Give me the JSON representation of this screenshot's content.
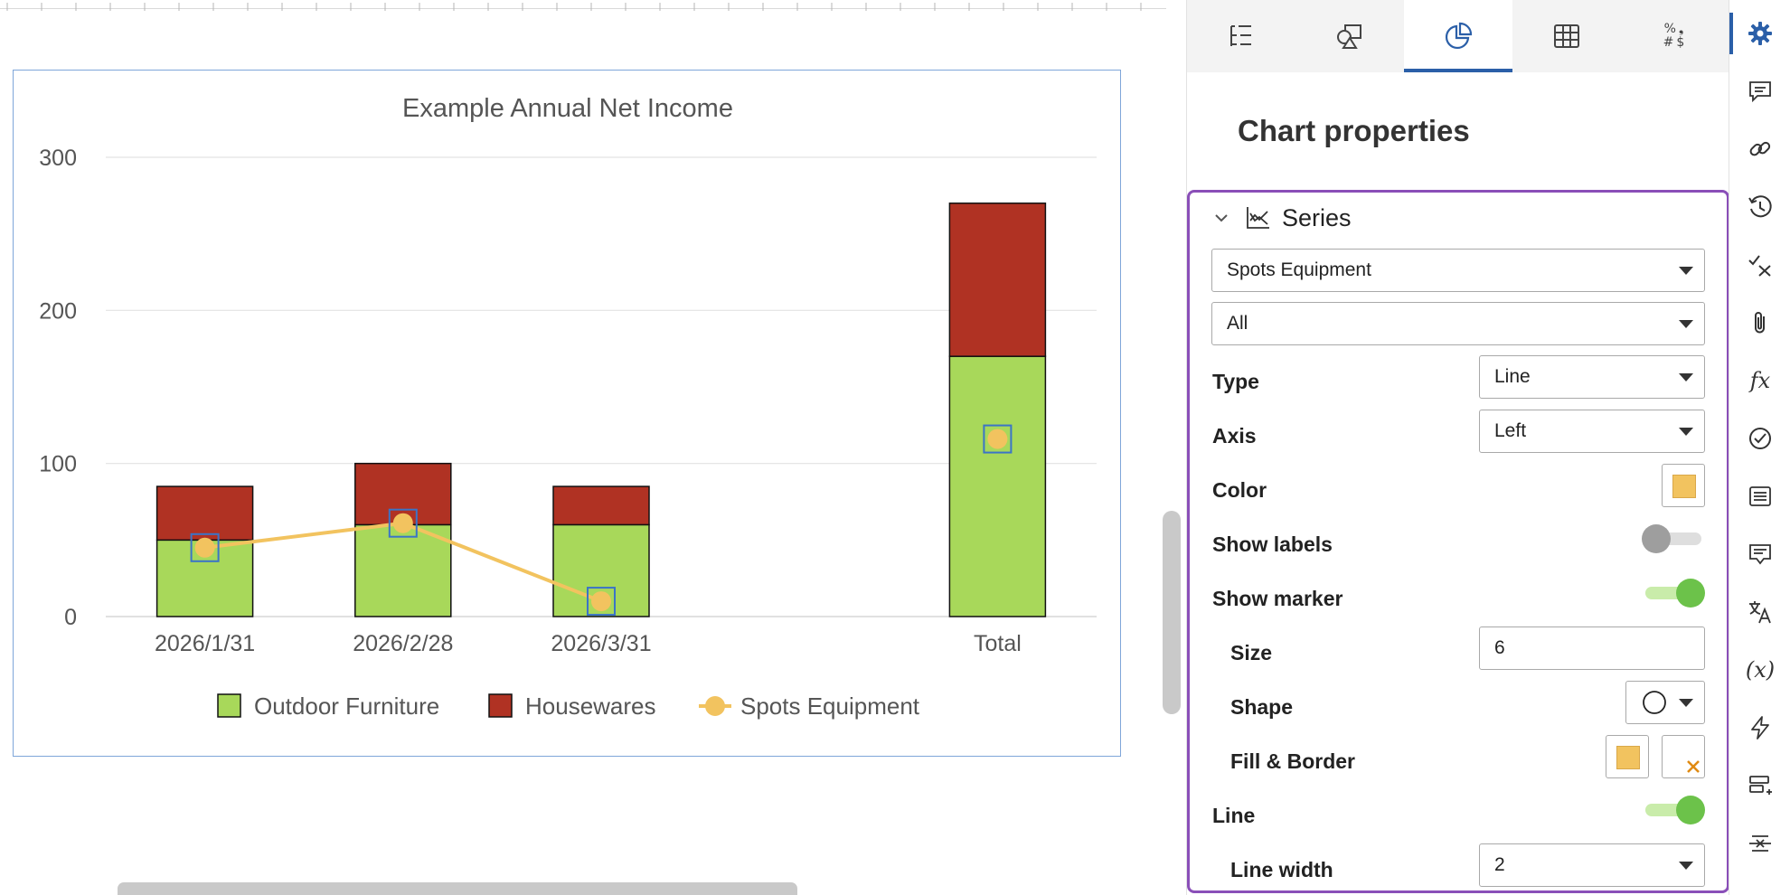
{
  "chart_data": {
    "type": "bar",
    "title": "Example Annual Net Income",
    "categories": [
      "2026/1/31",
      "2026/2/28",
      "2026/3/31",
      "",
      "Total"
    ],
    "ylim": [
      0,
      300
    ],
    "yticks": [
      0,
      100,
      200,
      300
    ],
    "grid": true,
    "legend_position": "bottom",
    "series": [
      {
        "name": "Outdoor Furniture",
        "kind": "bar",
        "color": "#a8d85a",
        "values": [
          50,
          60,
          60,
          null,
          170
        ]
      },
      {
        "name": "Housewares",
        "kind": "bar",
        "color": "#b03223",
        "values": [
          35,
          40,
          25,
          null,
          100
        ]
      },
      {
        "name": "Spots Equipment",
        "kind": "line",
        "color": "#f2c35f",
        "values": [
          45,
          61,
          10,
          null,
          116
        ]
      }
    ]
  },
  "panel": {
    "tabs": [
      {
        "name": "tab-setup",
        "icon": "list-tree-icon"
      },
      {
        "name": "tab-shapes",
        "icon": "shapes-icon"
      },
      {
        "name": "tab-chart",
        "icon": "pie-chart-icon",
        "active": true
      },
      {
        "name": "tab-table",
        "icon": "table-icon"
      },
      {
        "name": "tab-number-format",
        "icon": "number-format-icon",
        "glyph_top": "%❟",
        "glyph_bottom": "#$"
      }
    ],
    "title": "Chart properties",
    "series_section": {
      "title": "Series",
      "series_select": "Spots Equipment",
      "scope_select": "All",
      "type_label": "Type",
      "type_value": "Line",
      "axis_label": "Axis",
      "axis_value": "Left",
      "color_label": "Color",
      "color_value": "#f2c35f",
      "show_labels_label": "Show labels",
      "show_labels_on": false,
      "show_marker_label": "Show marker",
      "show_marker_on": true,
      "size_label": "Size",
      "size_value": "6",
      "shape_label": "Shape",
      "shape_value": "circle",
      "fill_border_label": "Fill & Border",
      "fill_color": "#f2c35f",
      "border_color": "none",
      "line_label": "Line",
      "line_on": true,
      "line_width_label": "Line width",
      "line_width_value": "2"
    }
  },
  "rail": {
    "icons": [
      "gear-icon",
      "comment-icon",
      "link-icon",
      "history-icon",
      "check-x-icon",
      "attachment-icon",
      "function-icon",
      "check-circle-icon",
      "list-card-icon",
      "note-icon",
      "translate-icon",
      "variable-icon",
      "lightning-icon",
      "insert-row-icon",
      "split-icon"
    ],
    "function_glyph": "fx",
    "variable_glyph": "(x)"
  }
}
